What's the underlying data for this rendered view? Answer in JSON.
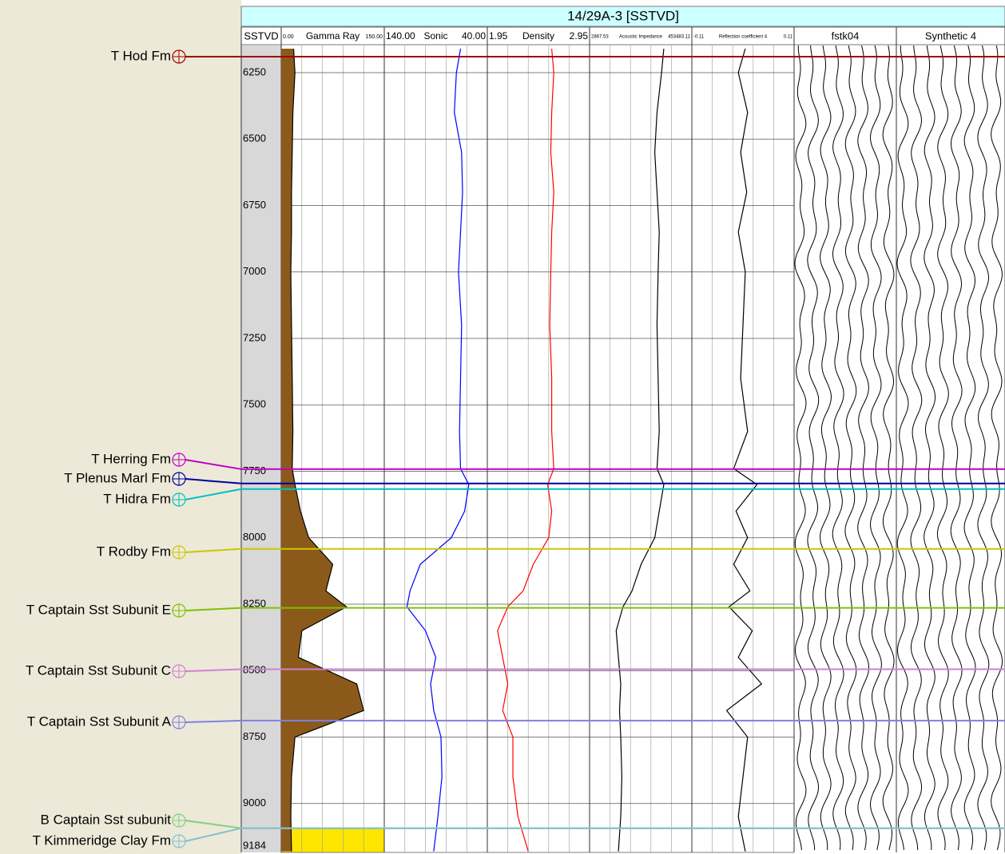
{
  "chart_data": {
    "type": "well-log",
    "title": "14/29A-3 [SSTVD]",
    "ylim": [
      6148,
      9184
    ],
    "yticks": [
      6250,
      6500,
      6750,
      7000,
      7250,
      7500,
      7750,
      8000,
      8250,
      8500,
      8750,
      9000,
      9184
    ],
    "depths": [
      6160,
      6250,
      6400,
      6550,
      6700,
      6850,
      7000,
      7200,
      7400,
      7600,
      7740,
      7800,
      7900,
      8000,
      8100,
      8200,
      8260,
      8350,
      8450,
      8550,
      8650,
      8750,
      8900,
      9050,
      9180
    ],
    "tracks": [
      {
        "name": "SSTVD"
      },
      {
        "name": "Gamma Ray",
        "xlim": [
          {
            "value": 0,
            "label": "0.00"
          },
          {
            "value": 150,
            "label": "150.00"
          }
        ],
        "color": "#000000",
        "fill": "#8b5a1b",
        "values": [
          18,
          20,
          17,
          16,
          15,
          15,
          14,
          15,
          16,
          17,
          16,
          20,
          28,
          40,
          75,
          65,
          95,
          30,
          25,
          110,
          120,
          20,
          15,
          14,
          15
        ]
      },
      {
        "name": "Sonic",
        "xlim": [
          {
            "value": 140,
            "label": "140.00"
          },
          {
            "value": 40,
            "label": "40.00"
          }
        ],
        "color": "#0000ff",
        "values": [
          66,
          70,
          72,
          65,
          64,
          66,
          68,
          65,
          66,
          67,
          66,
          58,
          62,
          75,
          105,
          115,
          118,
          100,
          90,
          95,
          92,
          85,
          84,
          88,
          92
        ]
      },
      {
        "name": "Density",
        "xlim": [
          1.95,
          2.95
        ],
        "color": "#ff0000",
        "values": [
          2.58,
          2.6,
          2.58,
          2.57,
          2.6,
          2.58,
          2.57,
          2.56,
          2.58,
          2.58,
          2.6,
          2.54,
          2.58,
          2.55,
          2.4,
          2.3,
          2.15,
          2.05,
          2.1,
          2.15,
          2.1,
          2.2,
          2.2,
          2.25,
          2.35
        ]
      },
      {
        "name": "Acoustic Impedance",
        "xlim": [
          2867.53,
          453483.11
        ],
        "color": "#000000",
        "values": [
          330000,
          320000,
          300000,
          290000,
          300000,
          310000,
          305000,
          300000,
          305000,
          310000,
          300000,
          330000,
          310000,
          290000,
          230000,
          190000,
          150000,
          120000,
          130000,
          140000,
          135000,
          140000,
          145000,
          140000,
          130000
        ]
      },
      {
        "name": "Reflection coefficient 4",
        "xlim": [
          -0.11,
          0.11
        ],
        "color": "#000000",
        "values": [
          0.005,
          -0.01,
          0.01,
          -0.005,
          0.008,
          -0.01,
          0.005,
          0.0,
          -0.005,
          0.01,
          -0.02,
          0.03,
          -0.015,
          0.01,
          -0.02,
          0.015,
          -0.03,
          0.02,
          -0.01,
          0.04,
          -0.035,
          0.01,
          0.0,
          -0.01,
          0.005
        ]
      },
      {
        "name": "fstk04"
      },
      {
        "name": "Synthetic 4"
      }
    ],
    "formation_tops": [
      {
        "name": "T Hod Fm",
        "depth": 6190,
        "color": "#a00000"
      },
      {
        "name": "T Herring Fm",
        "depth": 7742,
        "color": "#c000c0"
      },
      {
        "name": "T Plenus Marl Fm",
        "depth": 7796,
        "color": "#0000a0"
      },
      {
        "name": "T Hidra Fm",
        "depth": 7817,
        "color": "#00c0c0"
      },
      {
        "name": "T Rodby Fm",
        "depth": 8042,
        "color": "#c8c800"
      },
      {
        "name": "T Captain Sst Subunit E",
        "depth": 8264,
        "color": "#80c000"
      },
      {
        "name": "T Captain Sst Subunit C",
        "depth": 8495,
        "color": "#d080d0"
      },
      {
        "name": "T Captain Sst Subunit A",
        "depth": 8688,
        "color": "#8080e0"
      },
      {
        "name": "B Captain Sst subunit",
        "depth": 9093,
        "color": "#80d080"
      },
      {
        "name": "T Kimmeridge Clay Fm",
        "depth": 9093,
        "color": "#80c0d0"
      }
    ]
  }
}
